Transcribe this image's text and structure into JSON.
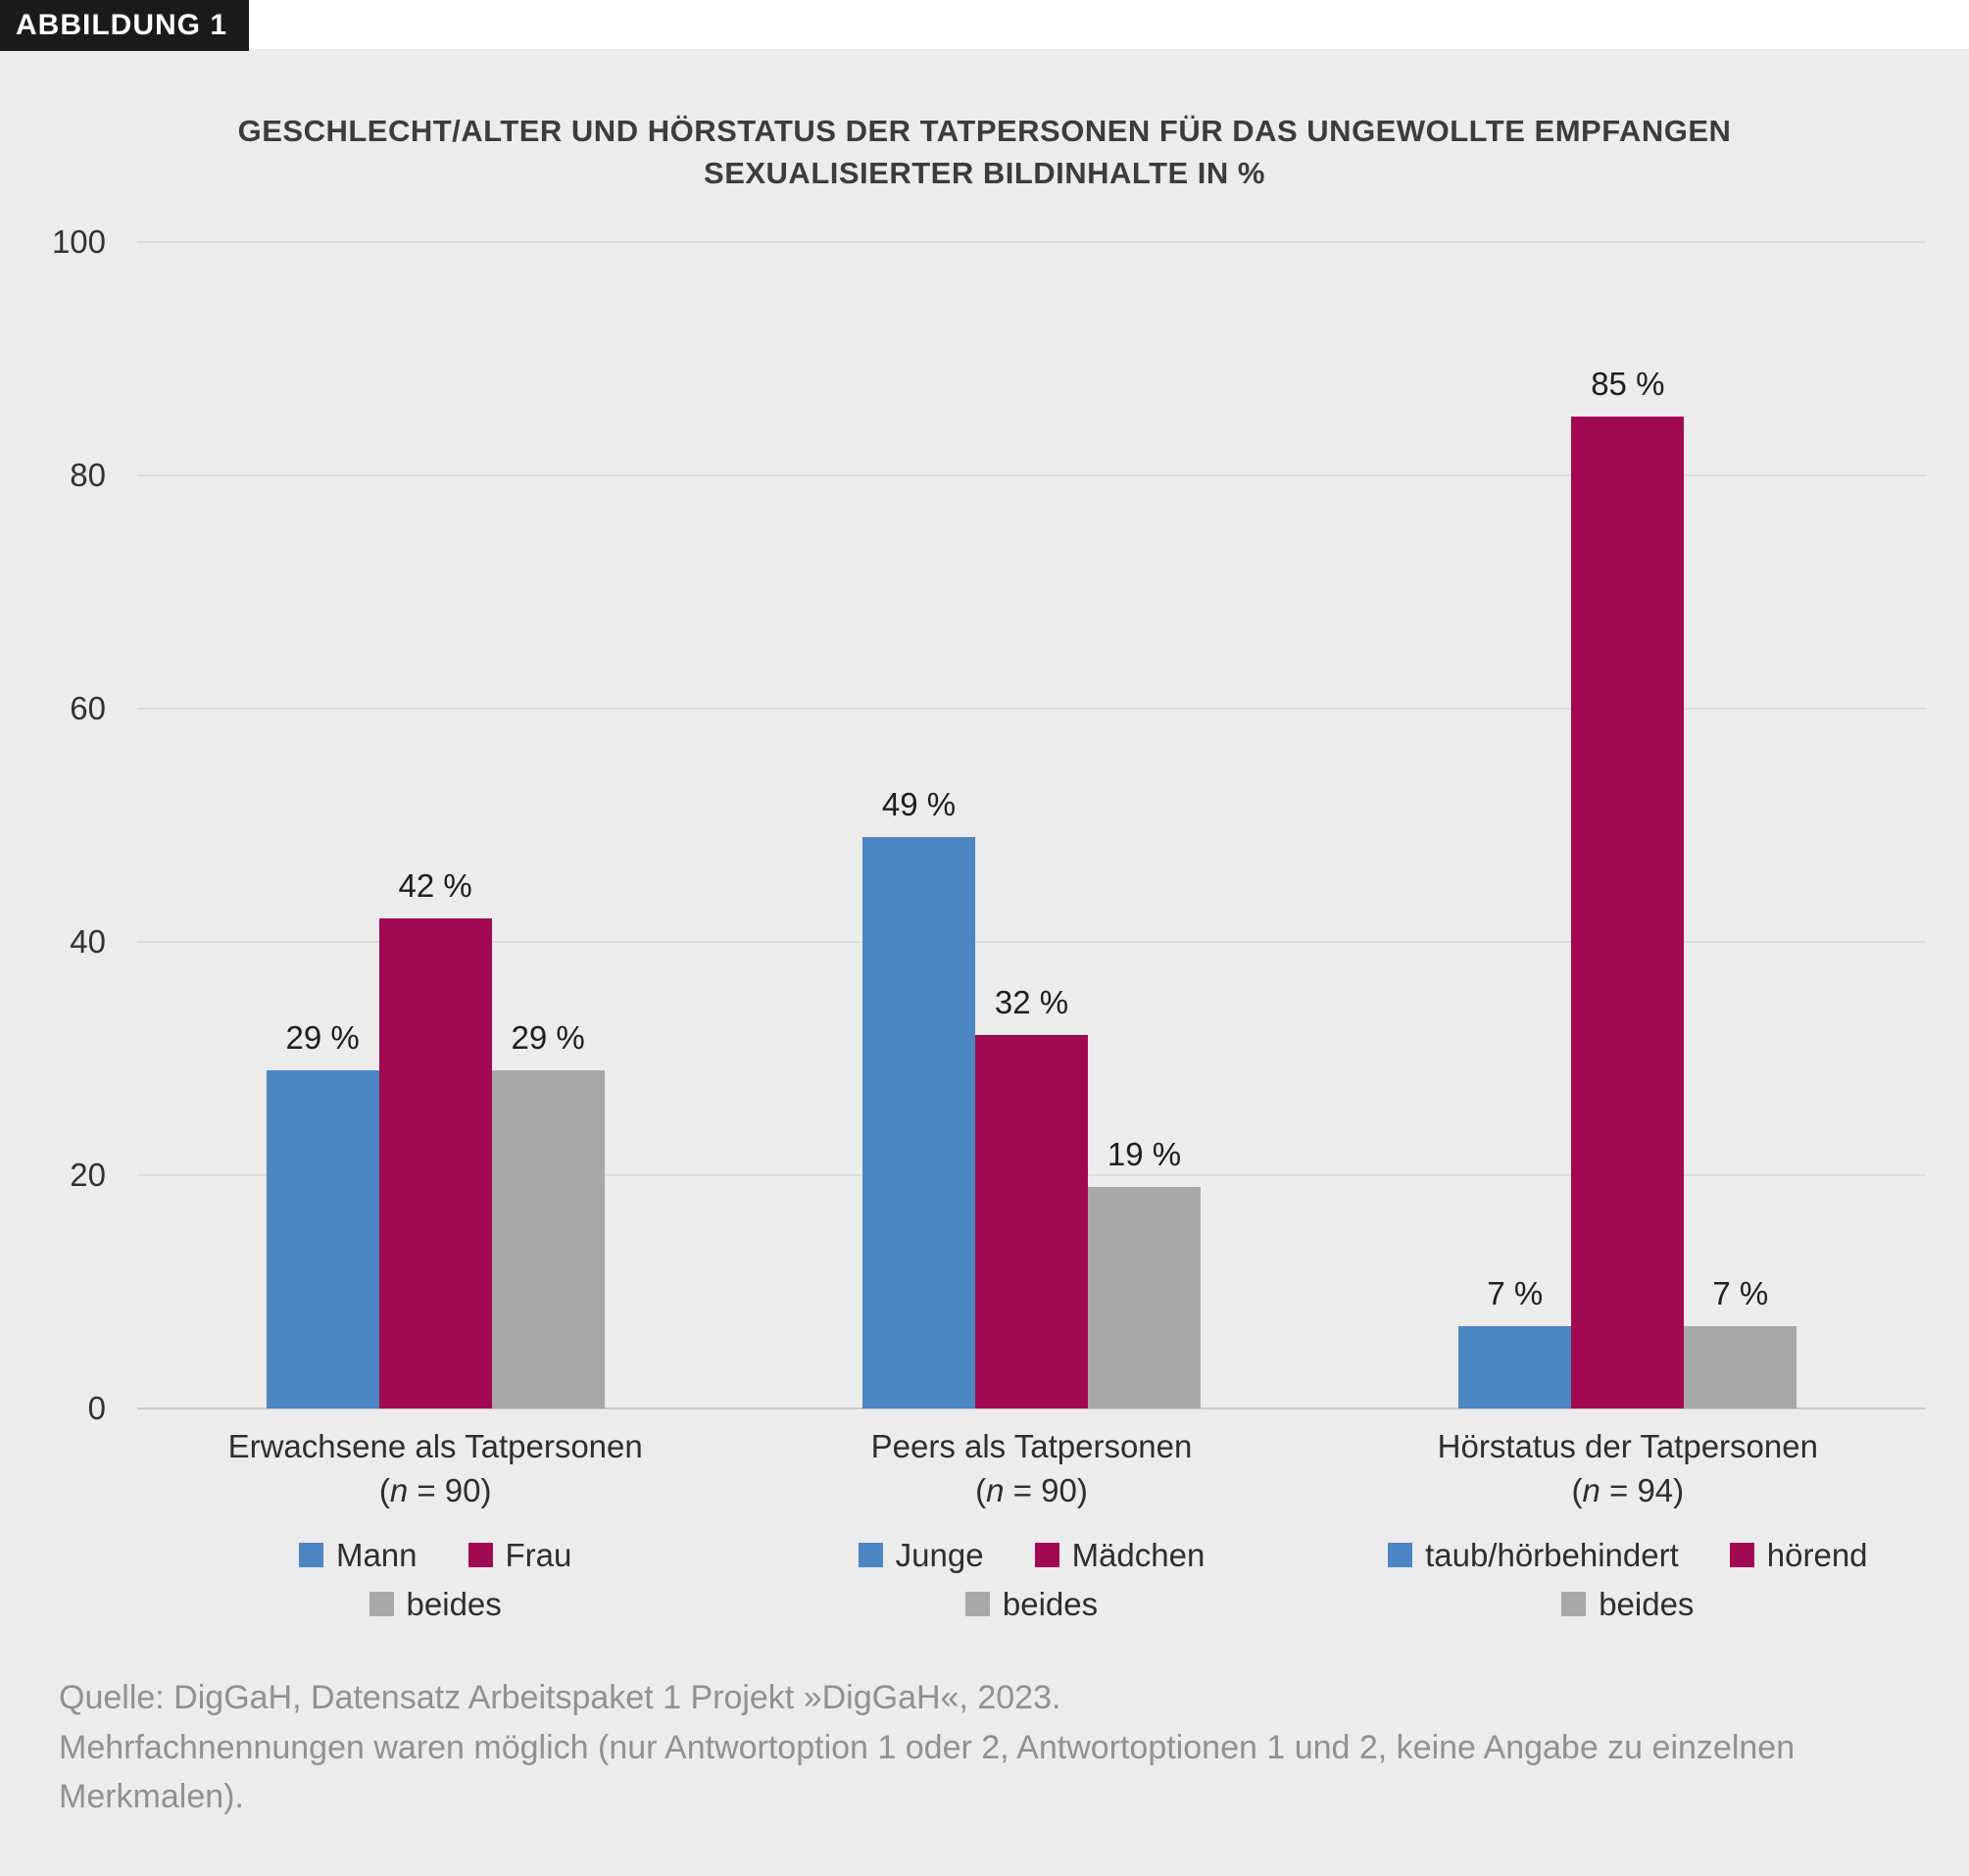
{
  "badge": "ABBILDUNG 1",
  "title": {
    "line1": "GESCHLECHT/ALTER UND HÖRSTATUS DER TATPERSONEN FÜR DAS UNGEWOLLTE EMPFANGEN",
    "line2": "SEXUALISIERTER BILDINHALTE IN %"
  },
  "chart_data": {
    "type": "bar",
    "title": "Geschlecht/Alter und Hörstatus der Tatpersonen für das ungewollte Empfangen sexualisierter Bildinhalte in %",
    "ylabel": "%",
    "ylim": [
      0,
      100
    ],
    "yticks": [
      0,
      20,
      40,
      60,
      80,
      100
    ],
    "grid": true,
    "legend_position": "bottom-per-group",
    "colors": {
      "blue": "#4c86c3",
      "crimson": "#a10a51",
      "gray": "#a8a8a8"
    },
    "groups": [
      {
        "label": "Erwachsene als Tatpersonen",
        "n_label": "(n = 90)",
        "bars": [
          {
            "name": "Mann",
            "value": 29,
            "display": "29 %",
            "color": "#4c86c3"
          },
          {
            "name": "Frau",
            "value": 42,
            "display": "42 %",
            "color": "#a10a51"
          },
          {
            "name": "beides",
            "value": 29,
            "display": "29 %",
            "color": "#a8a8a8"
          }
        ],
        "legend_rows": [
          [
            {
              "label": "Mann",
              "color": "#4c86c3"
            },
            {
              "label": "Frau",
              "color": "#a10a51"
            }
          ],
          [
            {
              "label": "beides",
              "color": "#a8a8a8"
            }
          ]
        ]
      },
      {
        "label": "Peers als Tatpersonen",
        "n_label": "(n = 90)",
        "bars": [
          {
            "name": "Junge",
            "value": 49,
            "display": "49 %",
            "color": "#4c86c3"
          },
          {
            "name": "Mädchen",
            "value": 32,
            "display": "32 %",
            "color": "#a10a51"
          },
          {
            "name": "beides",
            "value": 19,
            "display": "19 %",
            "color": "#a8a8a8"
          }
        ],
        "legend_rows": [
          [
            {
              "label": "Junge",
              "color": "#4c86c3"
            },
            {
              "label": "Mädchen",
              "color": "#a10a51"
            }
          ],
          [
            {
              "label": "beides",
              "color": "#a8a8a8"
            }
          ]
        ]
      },
      {
        "label": "Hörstatus der Tatpersonen",
        "n_label": "(n = 94)",
        "bars": [
          {
            "name": "taub/hörbehindert",
            "value": 7,
            "display": "7 %",
            "color": "#4c86c3"
          },
          {
            "name": "hörend",
            "value": 85,
            "display": "85 %",
            "color": "#a10a51"
          },
          {
            "name": "beides",
            "value": 7,
            "display": "7 %",
            "color": "#a8a8a8"
          }
        ],
        "legend_rows": [
          [
            {
              "label": "taub/hörbehindert",
              "color": "#4c86c3"
            },
            {
              "label": "hörend",
              "color": "#a10a51"
            }
          ],
          [
            {
              "label": "beides",
              "color": "#a8a8a8"
            }
          ]
        ]
      }
    ]
  },
  "source": {
    "line1": "Quelle: DigGaH, Datensatz Arbeitspaket 1 Projekt »DigGaH«, 2023.",
    "line2": "Mehrfachnennungen waren möglich (nur Antwortoption 1 oder 2, Antwortoptionen 1 und 2, keine Angabe zu einzelnen Merkmalen)."
  }
}
